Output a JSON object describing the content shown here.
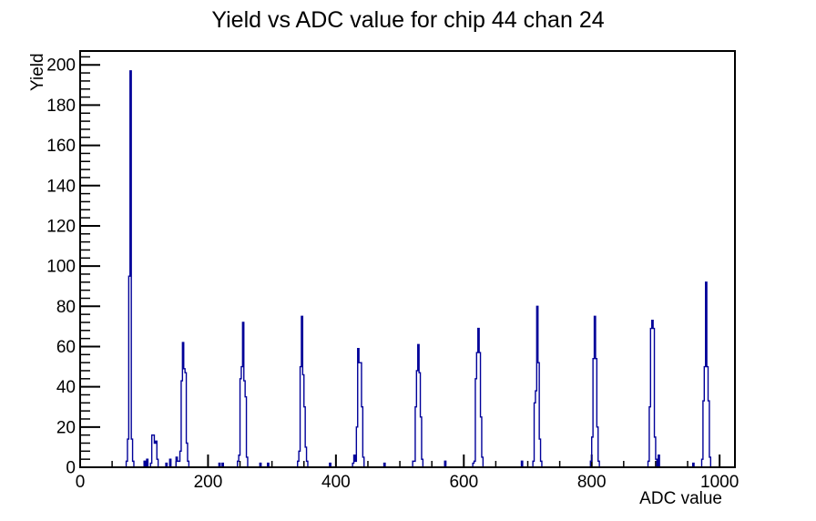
{
  "title": "Yield vs ADC value for chip 44 chan 24",
  "chart_data": {
    "type": "bar",
    "style": "histogram-outline",
    "title": "Yield vs ADC value for chip 44 chan 24",
    "xlabel": "ADC value",
    "ylabel": "Yield",
    "xlim": [
      0,
      1024
    ],
    "ylim": [
      0,
      206.9
    ],
    "x_major_ticks": [
      0,
      200,
      400,
      600,
      800,
      1000
    ],
    "x_minor_step": 50,
    "y_major_ticks": [
      0,
      20,
      40,
      60,
      80,
      100,
      120,
      140,
      160,
      180,
      200
    ],
    "y_minor_step": 4,
    "bin_width": 2,
    "grid": false,
    "legend": false,
    "colors": {
      "line": "#000099",
      "frame": "#000000",
      "text": "#000000",
      "background": "#ffffff"
    },
    "bars": [
      [
        72,
        3
      ],
      [
        74,
        14
      ],
      [
        76,
        95
      ],
      [
        78,
        197
      ],
      [
        80,
        14
      ],
      [
        82,
        3
      ],
      [
        100,
        3
      ],
      [
        104,
        4
      ],
      [
        110,
        2
      ],
      [
        112,
        16
      ],
      [
        114,
        16
      ],
      [
        116,
        12
      ],
      [
        118,
        13
      ],
      [
        120,
        4
      ],
      [
        134,
        2
      ],
      [
        140,
        4
      ],
      [
        150,
        5
      ],
      [
        152,
        3
      ],
      [
        154,
        3
      ],
      [
        156,
        8
      ],
      [
        158,
        43
      ],
      [
        160,
        62
      ],
      [
        162,
        49
      ],
      [
        164,
        47
      ],
      [
        166,
        12
      ],
      [
        168,
        3
      ],
      [
        217,
        2
      ],
      [
        222,
        2
      ],
      [
        246,
        3
      ],
      [
        248,
        6
      ],
      [
        250,
        44
      ],
      [
        252,
        50
      ],
      [
        254,
        72
      ],
      [
        256,
        43
      ],
      [
        258,
        35
      ],
      [
        260,
        5
      ],
      [
        281,
        2
      ],
      [
        293,
        2
      ],
      [
        340,
        3
      ],
      [
        342,
        8
      ],
      [
        344,
        50
      ],
      [
        346,
        75
      ],
      [
        348,
        46
      ],
      [
        350,
        30
      ],
      [
        352,
        10
      ],
      [
        354,
        3
      ],
      [
        390,
        2
      ],
      [
        426,
        2
      ],
      [
        428,
        6
      ],
      [
        430,
        3
      ],
      [
        432,
        20
      ],
      [
        434,
        59
      ],
      [
        436,
        52
      ],
      [
        438,
        52
      ],
      [
        440,
        30
      ],
      [
        442,
        5
      ],
      [
        475,
        2
      ],
      [
        520,
        3
      ],
      [
        522,
        3
      ],
      [
        524,
        30
      ],
      [
        526,
        48
      ],
      [
        528,
        61
      ],
      [
        530,
        47
      ],
      [
        532,
        25
      ],
      [
        534,
        4
      ],
      [
        570,
        3
      ],
      [
        614,
        2
      ],
      [
        616,
        3
      ],
      [
        618,
        44
      ],
      [
        620,
        57
      ],
      [
        622,
        69
      ],
      [
        624,
        57
      ],
      [
        626,
        25
      ],
      [
        628,
        5
      ],
      [
        690,
        3
      ],
      [
        708,
        3
      ],
      [
        710,
        32
      ],
      [
        712,
        38
      ],
      [
        714,
        80
      ],
      [
        716,
        52
      ],
      [
        718,
        14
      ],
      [
        720,
        3
      ],
      [
        798,
        3
      ],
      [
        800,
        15
      ],
      [
        802,
        54
      ],
      [
        804,
        75
      ],
      [
        806,
        54
      ],
      [
        808,
        20
      ],
      [
        810,
        3
      ],
      [
        888,
        3
      ],
      [
        890,
        30
      ],
      [
        892,
        69
      ],
      [
        894,
        73
      ],
      [
        896,
        69
      ],
      [
        898,
        15
      ],
      [
        900,
        4
      ],
      [
        904,
        6
      ],
      [
        958,
        2
      ],
      [
        972,
        4
      ],
      [
        974,
        33
      ],
      [
        976,
        50
      ],
      [
        978,
        92
      ],
      [
        980,
        50
      ],
      [
        982,
        33
      ],
      [
        984,
        5
      ]
    ]
  }
}
